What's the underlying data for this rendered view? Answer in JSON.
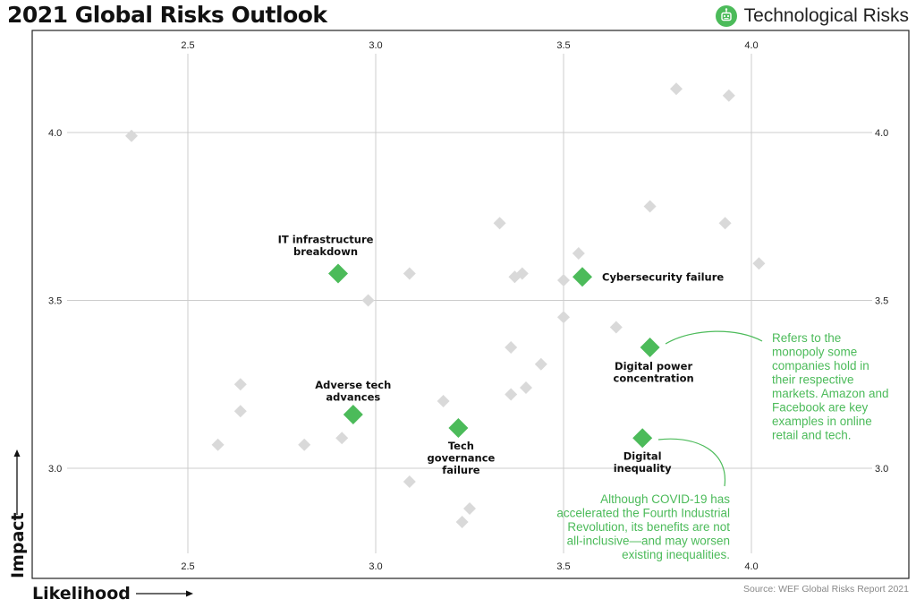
{
  "title": "2021 Global Risks Outlook",
  "category": {
    "label": "Technological Risks",
    "icon": "robot-icon",
    "color": "#4cbb5a"
  },
  "source": "Source: WEF Global Risks Report 2021",
  "colors": {
    "highlight": "#4cbb5a",
    "background_points": "#d9d9d9",
    "grid": "#cccccc"
  },
  "chart_data": {
    "type": "scatter",
    "title": "2021 Global Risks Outlook",
    "xlabel": "Likelihood",
    "ylabel": "Impact",
    "xlim": [
      2.0,
      4.4
    ],
    "ylim": [
      2.7,
      4.3
    ],
    "xticks": [
      2.5,
      3.0,
      3.5,
      4.0
    ],
    "xtick_labels": [
      "2.5",
      "3.0",
      "3.5",
      "4.0"
    ],
    "yticks": [
      3.0,
      3.5,
      4.0
    ],
    "ytick_labels": [
      "3.0",
      "3.5",
      "4.0"
    ],
    "grid": true,
    "highlighted": [
      {
        "label_lines": [
          "IT infrastructure",
          "breakdown"
        ],
        "x": 2.9,
        "y": 3.58
      },
      {
        "label_lines": [
          "Cybersecurity failure"
        ],
        "x": 3.55,
        "y": 3.57
      },
      {
        "label_lines": [
          "Digital power",
          "concentration"
        ],
        "x": 3.73,
        "y": 3.36
      },
      {
        "label_lines": [
          "Adverse tech",
          "advances"
        ],
        "x": 2.94,
        "y": 3.16
      },
      {
        "label_lines": [
          "Tech",
          "governance",
          "failure"
        ],
        "x": 3.22,
        "y": 3.12
      },
      {
        "label_lines": [
          "Digital",
          "inequality"
        ],
        "x": 3.71,
        "y": 3.09
      }
    ],
    "other_points": [
      {
        "x": 2.35,
        "y": 3.99
      },
      {
        "x": 3.8,
        "y": 4.13
      },
      {
        "x": 3.94,
        "y": 4.11
      },
      {
        "x": 3.73,
        "y": 3.78
      },
      {
        "x": 3.33,
        "y": 3.73
      },
      {
        "x": 3.93,
        "y": 3.73
      },
      {
        "x": 3.54,
        "y": 3.64
      },
      {
        "x": 4.02,
        "y": 3.61
      },
      {
        "x": 3.09,
        "y": 3.58
      },
      {
        "x": 3.39,
        "y": 3.58
      },
      {
        "x": 3.37,
        "y": 3.57
      },
      {
        "x": 3.5,
        "y": 3.56
      },
      {
        "x": 2.98,
        "y": 3.5
      },
      {
        "x": 3.5,
        "y": 3.45
      },
      {
        "x": 3.64,
        "y": 3.42
      },
      {
        "x": 3.36,
        "y": 3.36
      },
      {
        "x": 3.44,
        "y": 3.31
      },
      {
        "x": 2.64,
        "y": 3.25
      },
      {
        "x": 3.4,
        "y": 3.24
      },
      {
        "x": 3.36,
        "y": 3.22
      },
      {
        "x": 3.18,
        "y": 3.2
      },
      {
        "x": 2.64,
        "y": 3.17
      },
      {
        "x": 2.91,
        "y": 3.09
      },
      {
        "x": 2.58,
        "y": 3.07
      },
      {
        "x": 2.81,
        "y": 3.07
      },
      {
        "x": 3.09,
        "y": 2.96
      },
      {
        "x": 3.25,
        "y": 2.88
      },
      {
        "x": 3.23,
        "y": 2.84
      }
    ]
  },
  "annotations": [
    {
      "lines": [
        "Refers to the",
        "monopoly some",
        "companies hold in",
        "their respective",
        "markets. Amazon and",
        "Facebook are key",
        "examples in online",
        "retail and tech."
      ]
    },
    {
      "lines": [
        "Although COVID-19 has",
        "accelerated the Fourth Industrial",
        "Revolution, its benefits are not",
        "all-inclusive—and may worsen",
        "existing inequalities."
      ]
    }
  ]
}
